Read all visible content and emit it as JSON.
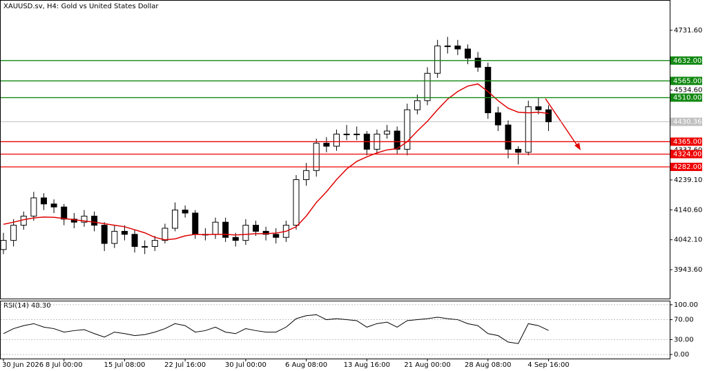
{
  "chart_data": [
    {
      "type": "candlestick",
      "title": "XAUUSD.sv, H4:  Gold vs United States Dollar",
      "categories": [
        "30 Jun 2026",
        null,
        null,
        null,
        null,
        null,
        "8 Jul 00:00",
        null,
        null,
        null,
        null,
        null,
        "15 Jul 08:00",
        null,
        null,
        null,
        null,
        null,
        "22 Jul 16:00",
        null,
        null,
        null,
        null,
        null,
        "30 Jul 00:00",
        null,
        null,
        null,
        null,
        null,
        "6 Aug 08:00",
        null,
        null,
        null,
        null,
        null,
        "13 Aug 16:00",
        null,
        null,
        null,
        null,
        null,
        "21 Aug 00:00",
        null,
        null,
        null,
        null,
        null,
        "28 Aug 08:00",
        null,
        null,
        null,
        null,
        null,
        "4 Sep 16:00"
      ],
      "open": [
        4010,
        4040,
        4090,
        4120,
        4180,
        4160,
        4150,
        4110,
        4100,
        4120,
        4090,
        4030,
        4070,
        4060,
        4020,
        4020,
        4040,
        4080,
        4140,
        4130,
        4060,
        4060,
        4100,
        4050,
        4040,
        4090,
        4070,
        4060,
        4050,
        4090,
        4240,
        4270,
        4360,
        4350,
        4390,
        4390,
        4390,
        4340,
        4390,
        4400,
        4340,
        4470,
        4500,
        4590,
        4680,
        4680,
        4670,
        4640,
        4610,
        4460,
        4420,
        4340,
        4330,
        4480,
        4470
      ],
      "high": [
        4065,
        4110,
        4135,
        4200,
        4195,
        4175,
        4160,
        4130,
        4140,
        4135,
        4100,
        4090,
        4090,
        4075,
        4040,
        4055,
        4095,
        4165,
        4155,
        4140,
        4080,
        4115,
        4115,
        4065,
        4110,
        4105,
        4085,
        4080,
        4105,
        4255,
        4295,
        4375,
        4380,
        4405,
        4420,
        4415,
        4400,
        4405,
        4420,
        4415,
        4490,
        4520,
        4610,
        4700,
        4710,
        4700,
        4685,
        4660,
        4625,
        4480,
        4435,
        4350,
        4500,
        4510,
        4485
      ],
      "low": [
        3995,
        4020,
        4075,
        4105,
        4140,
        4130,
        4090,
        4080,
        4085,
        4070,
        4005,
        4015,
        4040,
        4000,
        3995,
        4005,
        4030,
        4070,
        4115,
        4045,
        4040,
        4045,
        4035,
        4020,
        4025,
        4055,
        4040,
        4030,
        4035,
        4075,
        4220,
        4250,
        4330,
        4335,
        4370,
        4370,
        4320,
        4325,
        4375,
        4325,
        4320,
        4455,
        4485,
        4575,
        4655,
        4650,
        4620,
        4595,
        4440,
        4400,
        4310,
        4290,
        4320,
        4455,
        4400
      ],
      "close": [
        4040,
        4090,
        4120,
        4180,
        4160,
        4150,
        4110,
        4100,
        4120,
        4090,
        4030,
        4070,
        4060,
        4020,
        4020,
        4040,
        4080,
        4140,
        4130,
        4060,
        4060,
        4100,
        4050,
        4040,
        4090,
        4070,
        4060,
        4050,
        4090,
        4240,
        4270,
        4360,
        4350,
        4390,
        4390,
        4390,
        4340,
        4390,
        4400,
        4340,
        4470,
        4500,
        4590,
        4680,
        4680,
        4670,
        4640,
        4610,
        4460,
        4420,
        4340,
        4330,
        4480,
        4470,
        4430.36
      ],
      "up_color": "#ffffff",
      "down_color": "#000000",
      "ma": {
        "color": "#e00000",
        "values": [
          4093,
          4100,
          4108,
          4114,
          4117,
          4116,
          4112,
          4108,
          4104,
          4100,
          4095,
          4090,
          4085,
          4075,
          4065,
          4050,
          4042,
          4045,
          4055,
          4060,
          4059,
          4060,
          4060,
          4058,
          4060,
          4062,
          4062,
          4064,
          4070,
          4085,
          4120,
          4165,
          4200,
          4240,
          4275,
          4300,
          4315,
          4328,
          4338,
          4342,
          4365,
          4400,
          4432,
          4470,
          4505,
          4530,
          4548,
          4555,
          4530,
          4500,
          4475,
          4462,
          4460,
          4462,
          4458
        ]
      },
      "ylim": [
        3848.5,
        4829
      ],
      "yticks": [
        {
          "value": 4731.6,
          "label": "4731.60"
        },
        {
          "value": 4534.6,
          "label": "4534.60"
        },
        {
          "value": 4337.6,
          "label": "4337.60"
        },
        {
          "value": 4239.1,
          "label": "4239.10"
        },
        {
          "value": 4140.6,
          "label": "4140.60"
        },
        {
          "value": 4042.1,
          "label": "4042.10"
        },
        {
          "value": 3943.6,
          "label": "3943.60"
        }
      ],
      "levels": [
        {
          "value": 4632,
          "label": "4632.00",
          "color": "#118811"
        },
        {
          "value": 4565,
          "label": "4565.00",
          "color": "#118811"
        },
        {
          "value": 4510,
          "label": "4510.00",
          "color": "#118811"
        },
        {
          "value": 4365,
          "label": "4365.00",
          "color": "#ee0000"
        },
        {
          "value": 4324,
          "label": "4324.00",
          "color": "#ee0000"
        },
        {
          "value": 4282,
          "label": "4282.00",
          "color": "#ee0000"
        }
      ],
      "current_price": {
        "value": 4430.36,
        "label": "4430.36",
        "color": "#c0c0c0"
      }
    },
    {
      "type": "line",
      "title": "RSI(14) 48.30",
      "color": "#000000",
      "values": [
        42,
        52,
        58,
        62,
        55,
        52,
        45,
        48,
        50,
        42,
        35,
        45,
        42,
        38,
        40,
        45,
        52,
        62,
        58,
        45,
        48,
        55,
        45,
        42,
        52,
        48,
        45,
        45,
        55,
        72,
        78,
        80,
        70,
        72,
        70,
        68,
        55,
        62,
        65,
        55,
        68,
        70,
        72,
        75,
        72,
        70,
        62,
        58,
        42,
        38,
        25,
        22,
        62,
        58,
        48.3
      ],
      "ylim": [
        -8.2,
        106.8
      ],
      "yticks": [
        {
          "value": 100,
          "label": "100.00"
        },
        {
          "value": 70,
          "label": "70.00"
        },
        {
          "value": 30,
          "label": "30.00"
        },
        {
          "value": 0,
          "label": "0.00"
        }
      ],
      "grid": true
    }
  ]
}
